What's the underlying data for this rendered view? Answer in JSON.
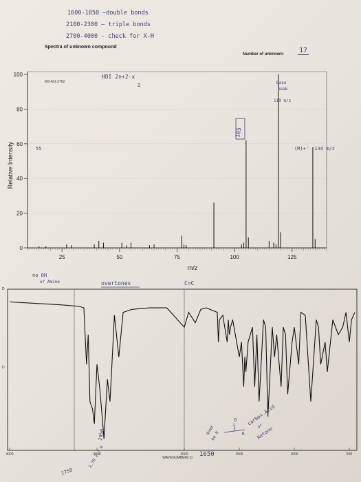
{
  "notes": {
    "line1": "1600-1850 —double bonds",
    "line2": "2100-2300 — triple bonds",
    "line3": "2700-4000 - check for X-H",
    "unknown_number": "17",
    "hdi_note": "HDI 2n+2-x",
    "hdi_den": "2",
    "base_peak_1": "Base",
    "base_peak_2": "peak",
    "base_peak_mz": "119 m/z",
    "mol_ion": "(M)+' -134 m/z",
    "peak_105": "105",
    "peak_55": "55",
    "no_oh_1": "no OH",
    "no_oh_2": "or Amine",
    "overtones": "overtones",
    "cc": "C=C",
    "ir_2950": "2950",
    "ir_2750": "2750",
    "ir_diag": "2,70 2,7 0",
    "ir_1650": "1650",
    "quad": "quad",
    "quad2": "be R",
    "carb1": "carbox.Acid",
    "carb2": "or",
    "carb3": "Ketone",
    "o_symbol": "O",
    "r_symbol": "R"
  },
  "labels": {
    "title": "Spectra of unknown compound",
    "unknown_label": "Number of unknown:",
    "ms_id": "MS-NU-3762",
    "ylabel": "Relative Intensity",
    "xlabel": "m/z",
    "ir_d_top": "D",
    "ir_d_mid": "D",
    "ir_wavenumber": "WAVENUMBER(-1)"
  },
  "chart_data": [
    {
      "type": "bar",
      "xlabel": "m/z",
      "ylabel": "Relative Intensity",
      "xlim": [
        10,
        140
      ],
      "ylim": [
        0,
        100
      ],
      "xticks": [
        25,
        50,
        75,
        100,
        125
      ],
      "yticks": [
        0,
        20,
        40,
        60,
        80,
        100
      ],
      "x": [
        15,
        18,
        27,
        29,
        39,
        41,
        43,
        51,
        53,
        55,
        63,
        65,
        77,
        78,
        79,
        91,
        103,
        104,
        105,
        106,
        115,
        117,
        118,
        119,
        120,
        134,
        135
      ],
      "values": [
        1,
        1,
        2,
        1.5,
        2,
        4,
        3,
        3,
        1.5,
        3,
        1.5,
        2,
        7,
        2,
        1.5,
        26,
        2,
        3,
        62,
        6,
        4,
        3,
        2,
        100,
        9,
        58,
        5
      ]
    },
    {
      "type": "line",
      "xlabel": "WAVENUMBER(-1)",
      "xticks": [
        4000,
        3000,
        2000,
        1500,
        1000,
        500
      ],
      "xlim": [
        4000,
        450
      ],
      "x": [
        4000,
        3700,
        3400,
        3200,
        3150,
        3120,
        3100,
        3080,
        3050,
        3030,
        3000,
        2970,
        2940,
        2920,
        2880,
        2850,
        2800,
        2750,
        2700,
        2600,
        2400,
        2200,
        2000,
        1960,
        1900,
        1850,
        1800,
        1700,
        1690,
        1680,
        1650,
        1610,
        1600,
        1590,
        1580,
        1560,
        1500,
        1480,
        1460,
        1450,
        1440,
        1420,
        1380,
        1360,
        1340,
        1320,
        1280,
        1260,
        1240,
        1200,
        1180,
        1160,
        1120,
        1100,
        1080,
        1060,
        1020,
        1000,
        960,
        940,
        900,
        850,
        800,
        780,
        760,
        720,
        700,
        650,
        600,
        560,
        530,
        500,
        480,
        450
      ],
      "values": [
        97,
        96,
        95,
        94,
        93,
        55,
        75,
        30,
        25,
        15,
        55,
        40,
        20,
        5,
        45,
        30,
        88,
        60,
        90,
        92,
        93,
        93,
        80,
        90,
        83,
        92,
        93,
        90,
        70,
        85,
        88,
        70,
        85,
        75,
        80,
        85,
        60,
        70,
        40,
        60,
        50,
        70,
        80,
        40,
        75,
        30,
        85,
        80,
        20,
        80,
        60,
        75,
        40,
        80,
        75,
        35,
        70,
        80,
        55,
        90,
        88,
        30,
        85,
        80,
        55,
        70,
        50,
        85,
        75,
        80,
        90,
        70,
        85,
        90
      ]
    }
  ]
}
